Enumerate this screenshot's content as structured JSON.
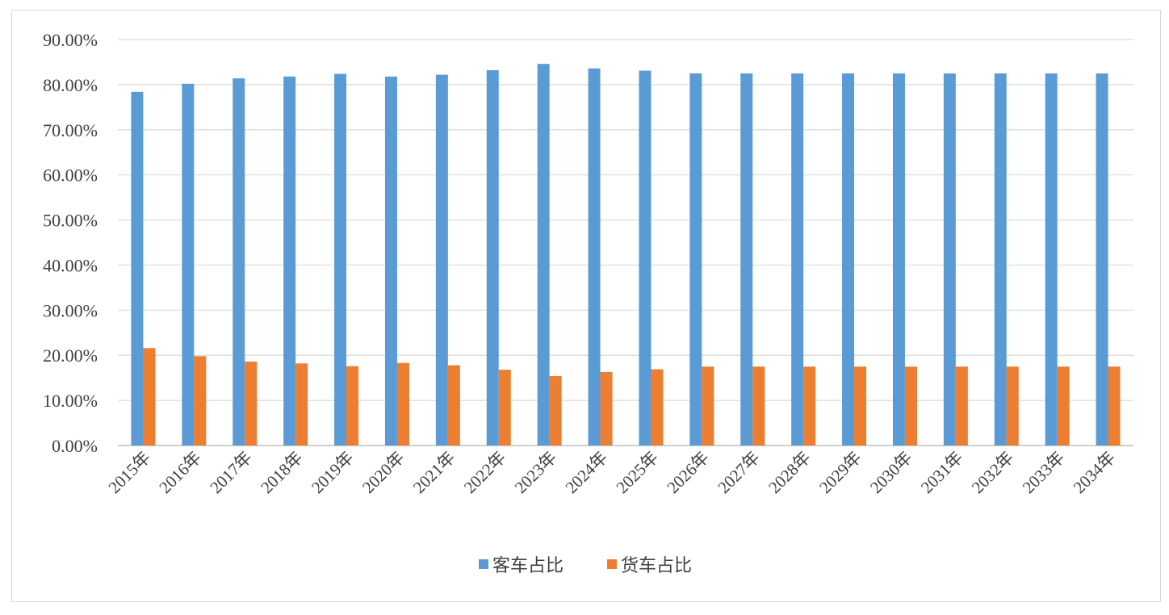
{
  "chart_data": {
    "type": "bar",
    "categories": [
      "2015年",
      "2016年",
      "2017年",
      "2018年",
      "2019年",
      "2020年",
      "2021年",
      "2022年",
      "2023年",
      "2024年",
      "2025年",
      "2026年",
      "2027年",
      "2028年",
      "2029年",
      "2030年",
      "2031年",
      "2032年",
      "2033年",
      "2034年"
    ],
    "series": [
      {
        "name": "客车占比",
        "color": "#5b9bd5",
        "values": [
          78.4,
          80.2,
          81.4,
          81.8,
          82.4,
          81.8,
          82.2,
          83.2,
          84.6,
          83.6,
          83.1,
          82.5,
          82.5,
          82.5,
          82.5,
          82.5,
          82.5,
          82.5,
          82.5,
          82.5
        ]
      },
      {
        "name": "货车占比",
        "color": "#ed7d31",
        "values": [
          21.6,
          19.8,
          18.6,
          18.2,
          17.6,
          18.3,
          17.8,
          16.8,
          15.4,
          16.3,
          16.9,
          17.5,
          17.5,
          17.5,
          17.5,
          17.5,
          17.5,
          17.5,
          17.5,
          17.5
        ]
      }
    ],
    "yticks": [
      "0.00%",
      "10.00%",
      "20.00%",
      "30.00%",
      "40.00%",
      "50.00%",
      "60.00%",
      "70.00%",
      "80.00%",
      "90.00%"
    ],
    "ylim": [
      0,
      90
    ],
    "title": "",
    "xlabel": "",
    "ylabel": "",
    "grid": true,
    "legend_position": "bottom"
  }
}
